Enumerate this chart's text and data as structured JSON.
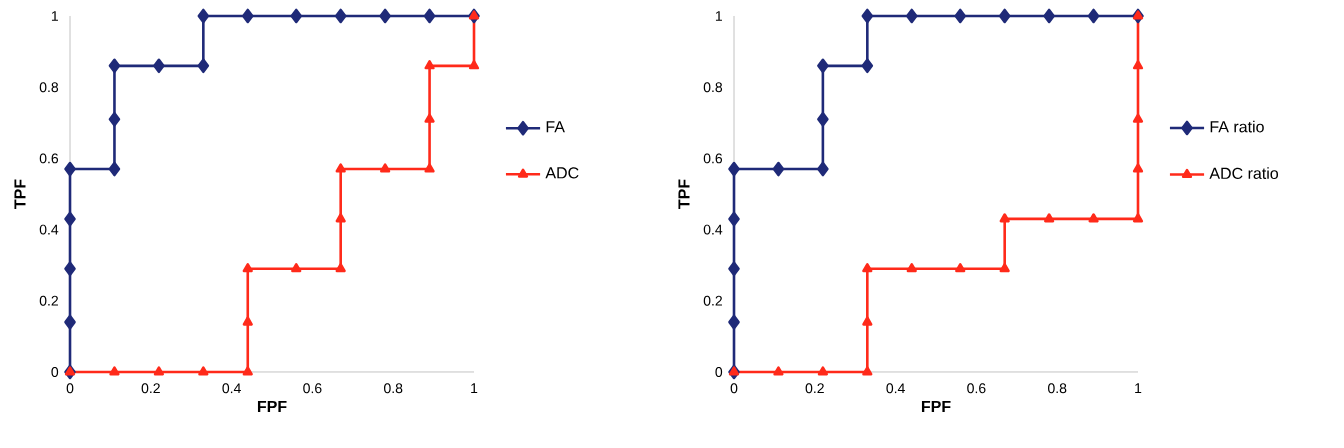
{
  "chart_data": [
    {
      "type": "line",
      "xlabel": "FPF",
      "ylabel": "TPF",
      "xlim": [
        0,
        1
      ],
      "ylim": [
        0,
        1
      ],
      "xticks": [
        0,
        0.2,
        0.4,
        0.6,
        0.8,
        1
      ],
      "yticks": [
        0,
        0.2,
        0.4,
        0.6,
        0.8,
        1
      ],
      "grid": false,
      "legend": "right",
      "line_style": "solid",
      "series": [
        {
          "name": "FA",
          "color": "#1f2a78",
          "marker": "diamond",
          "x": [
            0,
            0,
            0,
            0,
            0,
            0.11,
            0.11,
            0.11,
            0.22,
            0.33,
            0.33,
            0.44,
            0.56,
            0.67,
            0.78,
            0.89,
            1
          ],
          "values": [
            0,
            0.14,
            0.29,
            0.43,
            0.57,
            0.57,
            0.71,
            0.86,
            0.86,
            0.86,
            1,
            1,
            1,
            1,
            1,
            1,
            1
          ]
        },
        {
          "name": "ADC",
          "color": "#ff2a1a",
          "marker": "triangle",
          "x": [
            0,
            0.11,
            0.22,
            0.33,
            0.44,
            0.44,
            0.44,
            0.56,
            0.67,
            0.67,
            0.67,
            0.78,
            0.89,
            0.89,
            0.89,
            1,
            1
          ],
          "values": [
            0,
            0,
            0,
            0,
            0,
            0.14,
            0.29,
            0.29,
            0.29,
            0.43,
            0.57,
            0.57,
            0.57,
            0.71,
            0.86,
            0.86,
            1
          ]
        }
      ]
    },
    {
      "type": "line",
      "xlabel": "FPF",
      "ylabel": "TPF",
      "xlim": [
        0,
        1
      ],
      "ylim": [
        0,
        1
      ],
      "xticks": [
        0,
        0.2,
        0.4,
        0.6,
        0.8,
        1
      ],
      "yticks": [
        0,
        0.2,
        0.4,
        0.6,
        0.8,
        1
      ],
      "grid": false,
      "legend": "right",
      "line_style": "solid",
      "series": [
        {
          "name": "FA ratio",
          "color": "#1f2a78",
          "marker": "diamond",
          "x": [
            0,
            0,
            0,
            0,
            0,
            0.11,
            0.22,
            0.22,
            0.22,
            0.33,
            0.33,
            0.44,
            0.56,
            0.67,
            0.78,
            0.89,
            1
          ],
          "values": [
            0,
            0.14,
            0.29,
            0.43,
            0.57,
            0.57,
            0.57,
            0.71,
            0.86,
            0.86,
            1,
            1,
            1,
            1,
            1,
            1,
            1
          ]
        },
        {
          "name": "ADC ratio",
          "color": "#ff2a1a",
          "marker": "triangle",
          "x": [
            0,
            0.11,
            0.22,
            0.33,
            0.33,
            0.33,
            0.44,
            0.56,
            0.67,
            0.67,
            0.78,
            0.89,
            1,
            1,
            1,
            1,
            1
          ],
          "values": [
            0,
            0,
            0,
            0,
            0.14,
            0.29,
            0.29,
            0.29,
            0.29,
            0.43,
            0.43,
            0.43,
            0.43,
            0.57,
            0.71,
            0.86,
            1
          ]
        }
      ]
    }
  ]
}
